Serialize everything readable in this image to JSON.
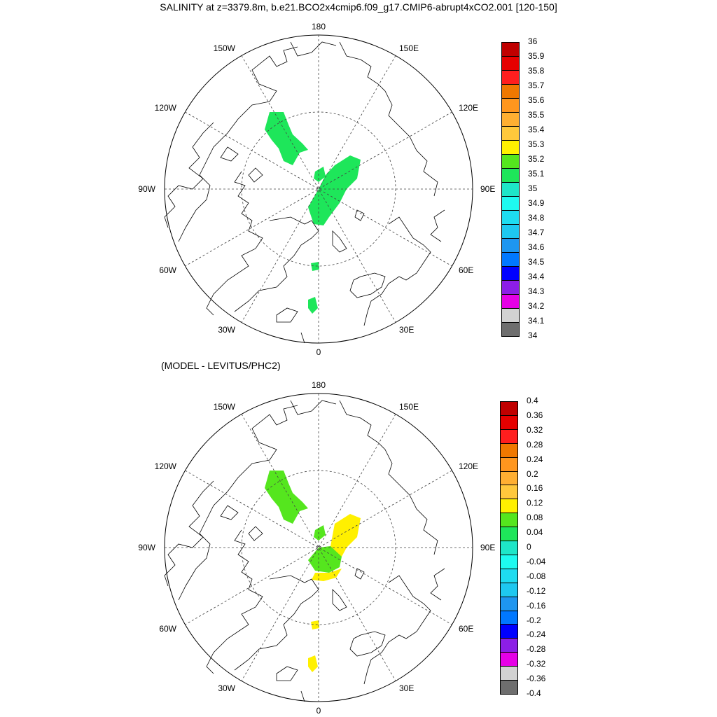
{
  "title": "SALINITY at z=3379.8m, b.e21.BCO2x4cmip6.f09_g17.CMIP6-abrupt4xCO2.001 [120-150]",
  "subtitle": "(MODEL - LEVITUS/PHC2)",
  "longitude_labels": {
    "top": "180",
    "bottom": "0",
    "left": "90W",
    "right": "90E",
    "upper_left_1": "150W",
    "upper_left_2": "120W",
    "upper_right_1": "150E",
    "upper_right_2": "120E",
    "lower_left_1": "60W",
    "lower_left_2": "30W",
    "lower_right_1": "60E",
    "lower_right_2": "30E"
  },
  "colors": {
    "salinity_field": "#1ee65a",
    "diff_green": "#55e61e",
    "diff_yellow": "#f5f000"
  },
  "chart_data": [
    {
      "type": "heatmap",
      "projection": "north-polar-stereographic",
      "title": "SALINITY at z=3379.8m, b.e21.BCO2x4cmip6.f09_g17.CMIP6-abrupt4xCO2.001 [120-150]",
      "field": "salinity",
      "observed_value_bin": [
        35.0,
        35.1
      ],
      "colorbar": {
        "labels": [
          "36",
          "35.9",
          "35.8",
          "35.7",
          "35.6",
          "35.5",
          "35.4",
          "35.3",
          "35.2",
          "35.1",
          "35",
          "34.9",
          "34.8",
          "34.7",
          "34.6",
          "34.5",
          "34.4",
          "34.3",
          "34.2",
          "34.1",
          "34"
        ],
        "colors": [
          "#c00000",
          "#e60000",
          "#ff1e1e",
          "#f07800",
          "#ff961e",
          "#ffaf32",
          "#ffc83c",
          "#fff000",
          "#55e61e",
          "#1ee65a",
          "#1ee6c8",
          "#1efaf0",
          "#1edcf0",
          "#1ec8f0",
          "#1e96f0",
          "#0078ff",
          "#0000ff",
          "#8c1ee6",
          "#e600e6",
          "#d2d2d2",
          "#6e6e6e"
        ]
      }
    },
    {
      "type": "heatmap",
      "projection": "north-polar-stereographic",
      "title": "(MODEL - LEVITUS/PHC2)",
      "field": "salinity difference",
      "observed_value_bins": [
        [
          0.04,
          0.08
        ],
        [
          0.12,
          0.16
        ]
      ],
      "colorbar": {
        "labels": [
          "0.4",
          "0.36",
          "0.32",
          "0.28",
          "0.24",
          "0.2",
          "0.16",
          "0.12",
          "0.08",
          "0.04",
          "0",
          "-0.04",
          "-0.08",
          "-0.12",
          "-0.16",
          "-0.2",
          "-0.24",
          "-0.28",
          "-0.32",
          "-0.36",
          "-0.4"
        ],
        "colors": [
          "#c00000",
          "#e60000",
          "#ff1e1e",
          "#f07800",
          "#ff961e",
          "#ffaf32",
          "#ffc83c",
          "#fff000",
          "#55e61e",
          "#1ee65a",
          "#1ee6c8",
          "#1efaf0",
          "#1edcf0",
          "#1ec8f0",
          "#1e96f0",
          "#0078ff",
          "#0000ff",
          "#8c1ee6",
          "#e600e6",
          "#d2d2d2",
          "#6e6e6e"
        ]
      }
    }
  ]
}
